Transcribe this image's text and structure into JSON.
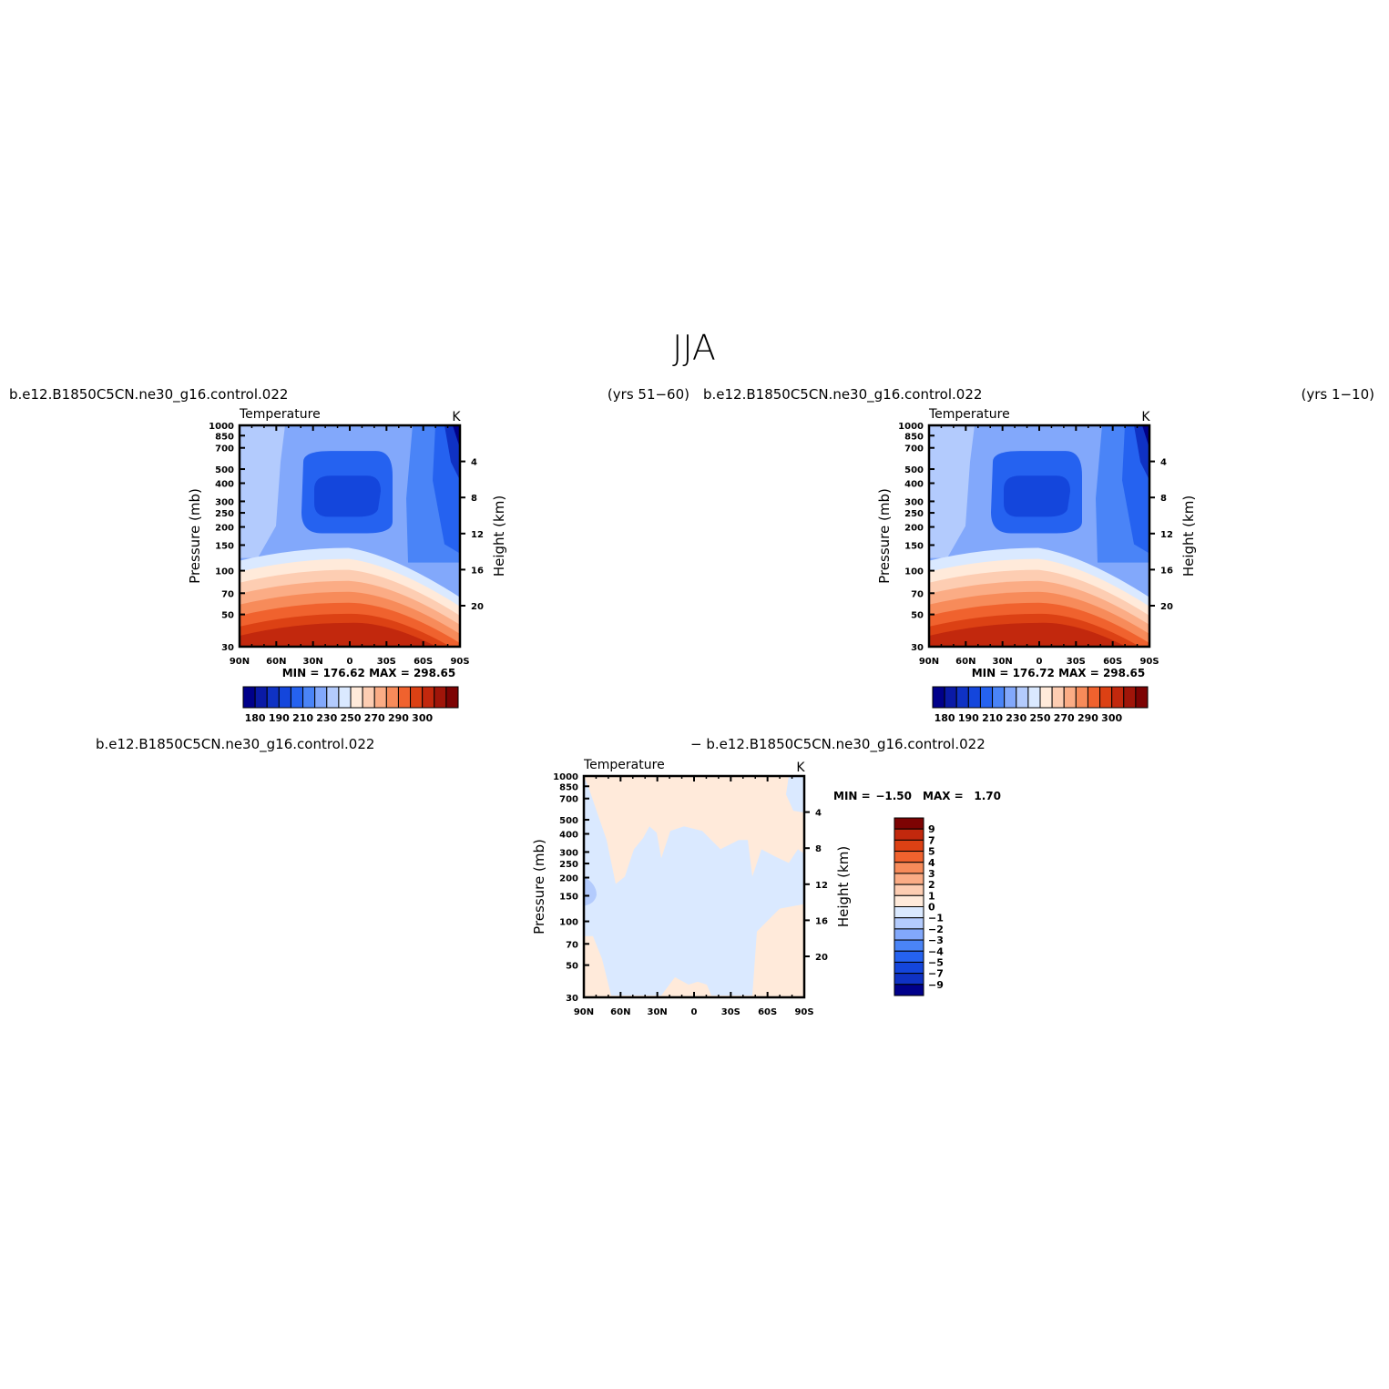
{
  "page": {
    "title": "JJA"
  },
  "colors": {
    "abs_palette": [
      "#00008a",
      "#0a1aa6",
      "#0f32c4",
      "#1446dc",
      "#2562f0",
      "#4a84f7",
      "#82a8fb",
      "#b3cbfd",
      "#dae9ff",
      "#ffeada",
      "#fdcdb2",
      "#fbac85",
      "#f78b5a",
      "#f0622e",
      "#dc4114",
      "#c2280d",
      "#a01509",
      "#7d0303"
    ],
    "diff_palette": [
      "#00008a",
      "#0a1aa6",
      "#0f32c4",
      "#1446dc",
      "#2562f0",
      "#4a84f7",
      "#82a8fb",
      "#b3cbfd",
      "#dae9ff",
      "#ffeada",
      "#fdcdb2",
      "#fbac85",
      "#f78b5a",
      "#f0622e",
      "#dc4114",
      "#c2280d",
      "#a01509",
      "#7d0303"
    ]
  },
  "chart_data": [
    {
      "type": "heatmap",
      "panel": "test",
      "case_label": "b.e12.B1850C5CN.ne30_g16.control.022",
      "years_label": "(yrs 51−60)",
      "title": "Temperature",
      "units": "K",
      "ylabel": "Pressure (mb)",
      "ylabel_right": "Height (km)",
      "x_ticks": [
        "90N",
        "60N",
        "30N",
        "0",
        "30S",
        "60S",
        "90S"
      ],
      "y_ticks": [
        "30",
        "50",
        "70",
        "100",
        "150",
        "200",
        "250",
        "300",
        "400",
        "500",
        "700",
        "850",
        "1000"
      ],
      "y_ticks_right": [
        "20",
        "16",
        "12",
        "8",
        "4"
      ],
      "min_max_label": "MIN = 176.62   MAX = 298.65",
      "colorbar_labels": [
        "180",
        "190",
        "210",
        "230",
        "250",
        "270",
        "290",
        "300"
      ],
      "xlim": [
        90,
        -90
      ],
      "ylim": [
        1000,
        30
      ]
    },
    {
      "type": "heatmap",
      "panel": "control",
      "case_label": "b.e12.B1850C5CN.ne30_g16.control.022",
      "years_label": "(yrs 1−10)",
      "title": "Temperature",
      "units": "K",
      "ylabel": "Pressure (mb)",
      "ylabel_right": "Height (km)",
      "x_ticks": [
        "90N",
        "60N",
        "30N",
        "0",
        "30S",
        "60S",
        "90S"
      ],
      "y_ticks": [
        "30",
        "50",
        "70",
        "100",
        "150",
        "200",
        "250",
        "300",
        "400",
        "500",
        "700",
        "850",
        "1000"
      ],
      "y_ticks_right": [
        "20",
        "16",
        "12",
        "8",
        "4"
      ],
      "min_max_label": "MIN = 176.72   MAX = 298.65",
      "colorbar_labels": [
        "180",
        "190",
        "210",
        "230",
        "250",
        "270",
        "290",
        "300"
      ],
      "xlim": [
        90,
        -90
      ],
      "ylim": [
        1000,
        30
      ]
    },
    {
      "type": "heatmap",
      "panel": "difference",
      "case_label_left": "b.e12.B1850C5CN.ne30_g16.control.022",
      "case_label_right": "− b.e12.B1850C5CN.ne30_g16.control.022",
      "title": "Temperature",
      "units": "K",
      "ylabel": "Pressure (mb)",
      "ylabel_right": "Height (km)",
      "x_ticks": [
        "90N",
        "60N",
        "30N",
        "0",
        "30S",
        "60S",
        "90S"
      ],
      "y_ticks": [
        "30",
        "50",
        "70",
        "100",
        "150",
        "200",
        "250",
        "300",
        "400",
        "500",
        "700",
        "850",
        "1000"
      ],
      "y_ticks_right": [
        "20",
        "16",
        "12",
        "8",
        "4"
      ],
      "min_label": "MIN =",
      "min_value": "−1.50",
      "max_label": "MAX =",
      "max_value": "1.70",
      "colorbar_labels": [
        "9",
        "7",
        "5",
        "4",
        "3",
        "2",
        "1",
        "0",
        "−1",
        "−2",
        "−3",
        "−4",
        "−5",
        "−7",
        "−9"
      ],
      "xlim": [
        90,
        -90
      ],
      "ylim": [
        1000,
        30
      ]
    }
  ]
}
